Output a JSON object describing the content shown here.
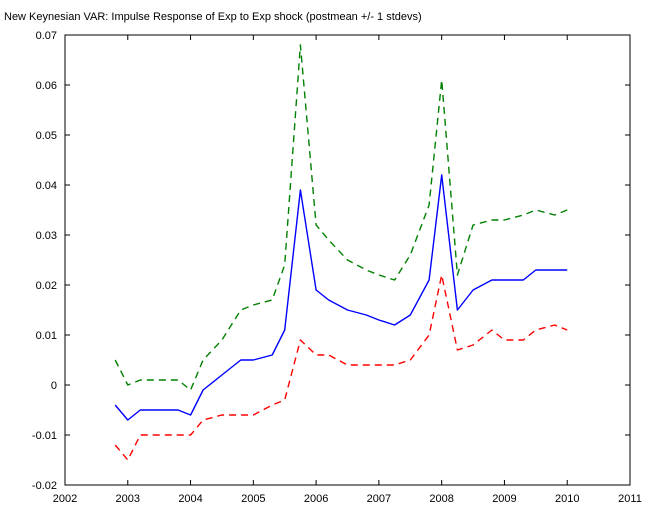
{
  "chart_data": {
    "type": "line",
    "title": "New Keynesian VAR: Impulse Response of Exp to Exp shock (postmean +/- 1 stdevs)",
    "xlabel": "",
    "ylabel": "",
    "xlim": [
      2002,
      2011
    ],
    "ylim": [
      -0.02,
      0.07
    ],
    "x_ticks": [
      "2002",
      "2003",
      "2004",
      "2005",
      "2006",
      "2007",
      "2008",
      "2009",
      "2010",
      "2011"
    ],
    "y_ticks": [
      "-0.02",
      "-0.01",
      "0",
      "0.01",
      "0.02",
      "0.03",
      "0.04",
      "0.05",
      "0.06",
      "0.07"
    ],
    "grid": false,
    "legend": "none",
    "series": [
      {
        "color": "#008000",
        "style": "dashed",
        "x": [
          2002.8,
          2003.0,
          2003.2,
          2003.5,
          2003.8,
          2004.0,
          2004.2,
          2004.5,
          2004.8,
          2005.0,
          2005.3,
          2005.5,
          2005.75,
          2006.0,
          2006.2,
          2006.5,
          2006.8,
          2007.0,
          2007.25,
          2007.5,
          2007.8,
          2008.0,
          2008.25,
          2008.5,
          2008.8,
          2009.0,
          2009.3,
          2009.5,
          2009.8,
          2010.0
        ],
        "y": [
          0.005,
          0.0,
          0.001,
          0.001,
          0.001,
          -0.001,
          0.005,
          0.009,
          0.015,
          0.016,
          0.017,
          0.024,
          0.068,
          0.032,
          0.029,
          0.025,
          0.023,
          0.022,
          0.021,
          0.026,
          0.036,
          0.061,
          0.022,
          0.032,
          0.033,
          0.033,
          0.034,
          0.035,
          0.034,
          0.035
        ]
      },
      {
        "color": "#0000ff",
        "style": "solid",
        "x": [
          2002.8,
          2003.0,
          2003.2,
          2003.5,
          2003.8,
          2004.0,
          2004.2,
          2004.5,
          2004.8,
          2005.0,
          2005.3,
          2005.5,
          2005.75,
          2006.0,
          2006.2,
          2006.5,
          2006.8,
          2007.0,
          2007.25,
          2007.5,
          2007.8,
          2008.0,
          2008.25,
          2008.5,
          2008.8,
          2009.0,
          2009.3,
          2009.5,
          2009.8,
          2010.0
        ],
        "y": [
          -0.004,
          -0.007,
          -0.005,
          -0.005,
          -0.005,
          -0.006,
          -0.001,
          0.002,
          0.005,
          0.005,
          0.006,
          0.011,
          0.039,
          0.019,
          0.017,
          0.015,
          0.014,
          0.013,
          0.012,
          0.014,
          0.021,
          0.042,
          0.015,
          0.019,
          0.021,
          0.021,
          0.021,
          0.023,
          0.023,
          0.023
        ]
      },
      {
        "color": "#ff0000",
        "style": "dashed",
        "x": [
          2002.8,
          2003.0,
          2003.2,
          2003.5,
          2003.8,
          2004.0,
          2004.2,
          2004.5,
          2004.8,
          2005.0,
          2005.3,
          2005.5,
          2005.75,
          2006.0,
          2006.2,
          2006.5,
          2006.8,
          2007.0,
          2007.25,
          2007.5,
          2007.8,
          2008.0,
          2008.25,
          2008.5,
          2008.8,
          2009.0,
          2009.3,
          2009.5,
          2009.8,
          2010.0
        ],
        "y": [
          -0.012,
          -0.015,
          -0.01,
          -0.01,
          -0.01,
          -0.01,
          -0.007,
          -0.006,
          -0.006,
          -0.006,
          -0.004,
          -0.003,
          0.009,
          0.006,
          0.006,
          0.004,
          0.004,
          0.004,
          0.004,
          0.005,
          0.01,
          0.022,
          0.007,
          0.008,
          0.011,
          0.009,
          0.009,
          0.011,
          0.012,
          0.011
        ]
      }
    ]
  }
}
